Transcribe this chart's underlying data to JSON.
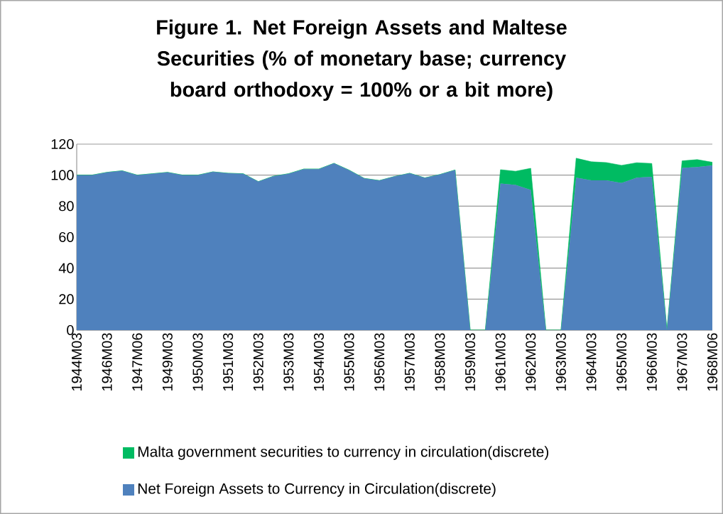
{
  "chart_data": {
    "type": "area",
    "stacked": true,
    "title": "Figure 1. Net Foreign Assets and Maltese Securities (% of monetary base; currency board orthodoxy = 100% or a bit more)",
    "categories": [
      "1944M03",
      null,
      "1946M03",
      null,
      "1947M06",
      null,
      "1949M03",
      null,
      "1950M03",
      null,
      "1951M03",
      null,
      "1952M03",
      null,
      "1953M03",
      null,
      "1954M03",
      null,
      "1955M03",
      null,
      "1956M03",
      null,
      "1957M03",
      null,
      "1958M03",
      null,
      "1959M03",
      null,
      "1961M03",
      null,
      "1962M03",
      null,
      "1963M03",
      null,
      "1964M03",
      null,
      "1965M03",
      null,
      "1966M03",
      null,
      "1967M03",
      null,
      "1968M06"
    ],
    "series": [
      {
        "name": "Net Foreign Assets to Currency in Circulation(discrete)",
        "color": "#4f81bd",
        "values": [
          100,
          100,
          101.8,
          102.8,
          100,
          100.9,
          101.8,
          100,
          100,
          102.1,
          101.2,
          100.9,
          95.8,
          99.3,
          100.9,
          103.9,
          103.9,
          107.6,
          103.2,
          97.9,
          96.5,
          99.1,
          101.2,
          98.2,
          100.4,
          103.3,
          0,
          0,
          94.6,
          93.6,
          90.5,
          0,
          0,
          98.3,
          96.6,
          96.6,
          94.9,
          98.3,
          98.9,
          0,
          104.6,
          105.2,
          106.3
        ]
      },
      {
        "name": "Malta government securities to currency in circulation(discrete)",
        "color": "#00bb62",
        "values": [
          0,
          0,
          0,
          0,
          0,
          0,
          0,
          0,
          0,
          0,
          0,
          0,
          0,
          0,
          0,
          0,
          0,
          0,
          0,
          0,
          0,
          0,
          0,
          0,
          0,
          0,
          0,
          0,
          8.9,
          8.9,
          13.9,
          0,
          0,
          12.6,
          12,
          11.5,
          11.4,
          9.7,
          8.6,
          0,
          4.6,
          4.8,
          2
        ]
      }
    ],
    "ylim": [
      0,
      120
    ],
    "yticks": [
      0,
      20,
      40,
      60,
      80,
      100,
      120
    ],
    "grid": "y",
    "legend": "bottom"
  }
}
